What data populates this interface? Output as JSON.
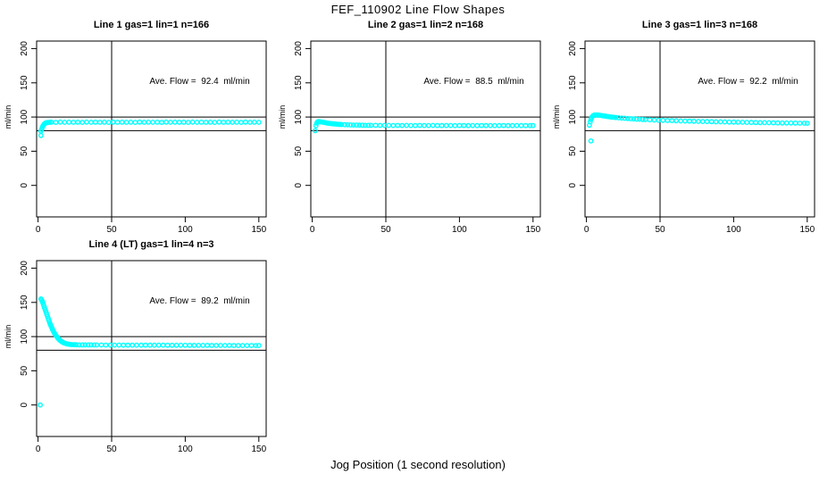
{
  "page": {
    "title": "FEF_110902  Line Flow Shapes",
    "xlabel": "Jog Position (1 second resolution)",
    "bg_color": "#ffffff",
    "axis_color": "#000000",
    "point_color": "#00ffff"
  },
  "chart_data": [
    {
      "type": "scatter",
      "title": "Line 1 gas=1 lin=1 n=166",
      "annotation": "Ave. Flow =  92.4  ml/min",
      "ave_flow_ml_min": 92.4,
      "n": 166,
      "ylabel": "ml/min",
      "xlim": [
        -1,
        155
      ],
      "ylim": [
        -46,
        211
      ],
      "xticks": [
        0,
        50,
        100,
        150
      ],
      "yticks": [
        0,
        50,
        100,
        150,
        200
      ],
      "ref_hlines": [
        100,
        80
      ],
      "ref_vlines": [
        50
      ],
      "grid": false,
      "points": [
        [
          2,
          73
        ],
        [
          2,
          79.5
        ],
        [
          2.4,
          82
        ],
        [
          2.8,
          84.5
        ],
        [
          3.2,
          86.5
        ],
        [
          3.6,
          88
        ],
        [
          4,
          89.3
        ],
        [
          4.5,
          90.4
        ],
        [
          5,
          91.1
        ],
        [
          5.5,
          91.6
        ],
        [
          6,
          91.9
        ],
        [
          7,
          92.2
        ],
        [
          8,
          92.3
        ],
        [
          9,
          92.4
        ],
        [
          12,
          92.2
        ],
        [
          15,
          92.5
        ],
        [
          18,
          92.3
        ],
        [
          21,
          92.4
        ],
        [
          24,
          92.3
        ],
        [
          27,
          92.4
        ],
        [
          30,
          92.2
        ],
        [
          33,
          92.5
        ],
        [
          36,
          92.3
        ],
        [
          39,
          92.4
        ],
        [
          42,
          92.3
        ],
        [
          45,
          92.4
        ],
        [
          48,
          92.2
        ],
        [
          51,
          92.5
        ],
        [
          54,
          92.3
        ],
        [
          57,
          92.4
        ],
        [
          60,
          92.3
        ],
        [
          63,
          92.4
        ],
        [
          66,
          92.2
        ],
        [
          69,
          92.5
        ],
        [
          72,
          92.3
        ],
        [
          75,
          92.4
        ],
        [
          78,
          92.3
        ],
        [
          81,
          92.4
        ],
        [
          84,
          92.2
        ],
        [
          87,
          92.5
        ],
        [
          90,
          92.3
        ],
        [
          93,
          92.4
        ],
        [
          96,
          92.3
        ],
        [
          99,
          92.4
        ],
        [
          102,
          92.2
        ],
        [
          105,
          92.5
        ],
        [
          108,
          92.3
        ],
        [
          111,
          92.4
        ],
        [
          114,
          92.3
        ],
        [
          117,
          92.4
        ],
        [
          120,
          92.2
        ],
        [
          123,
          92.5
        ],
        [
          126,
          92.3
        ],
        [
          129,
          92.4
        ],
        [
          132,
          92.3
        ],
        [
          135,
          92.4
        ],
        [
          138,
          92.2
        ],
        [
          141,
          92.5
        ],
        [
          144,
          92.3
        ],
        [
          147,
          92.4
        ],
        [
          150,
          92.3
        ]
      ]
    },
    {
      "type": "scatter",
      "title": "Line 2 gas=1 lin=2 n=168",
      "annotation": "Ave. Flow =  88.5  ml/min",
      "ave_flow_ml_min": 88.5,
      "n": 168,
      "ylabel": "ml/min",
      "xlim": [
        -1,
        155
      ],
      "ylim": [
        -46,
        211
      ],
      "xticks": [
        0,
        50,
        100,
        150
      ],
      "yticks": [
        0,
        50,
        100,
        150,
        200
      ],
      "ref_hlines": [
        100,
        80
      ],
      "ref_vlines": [
        50
      ],
      "grid": false,
      "points": [
        [
          2,
          80
        ],
        [
          2.5,
          87.5
        ],
        [
          3,
          91
        ],
        [
          3.5,
          92.7
        ],
        [
          4,
          93.2
        ],
        [
          4.5,
          93.3
        ],
        [
          5,
          93.2
        ],
        [
          6,
          92.8
        ],
        [
          7,
          92.4
        ],
        [
          8,
          92
        ],
        [
          9,
          91.6
        ],
        [
          10,
          91.2
        ],
        [
          11,
          90.9
        ],
        [
          12,
          90.6
        ],
        [
          13,
          90.3
        ],
        [
          14,
          90.1
        ],
        [
          15,
          89.9
        ],
        [
          16,
          89.7
        ],
        [
          17,
          89.5
        ],
        [
          18,
          89.3
        ],
        [
          19,
          89.2
        ],
        [
          20,
          89
        ],
        [
          22,
          88.8
        ],
        [
          24,
          88.6
        ],
        [
          26,
          88.4
        ],
        [
          28,
          88.3
        ],
        [
          30,
          88.2
        ],
        [
          32,
          88.1
        ],
        [
          34,
          88
        ],
        [
          36,
          87.9
        ],
        [
          38,
          87.9
        ],
        [
          40,
          87.8
        ],
        [
          43,
          87.8
        ],
        [
          46,
          87.7
        ],
        [
          49,
          87.7
        ],
        [
          52,
          87.7
        ],
        [
          55,
          87.6
        ],
        [
          58,
          87.7
        ],
        [
          61,
          87.6
        ],
        [
          64,
          87.7
        ],
        [
          67,
          87.6
        ],
        [
          70,
          87.6
        ],
        [
          73,
          87.7
        ],
        [
          76,
          87.6
        ],
        [
          79,
          87.6
        ],
        [
          82,
          87.7
        ],
        [
          85,
          87.6
        ],
        [
          88,
          87.5
        ],
        [
          91,
          87.6
        ],
        [
          94,
          87.6
        ],
        [
          97,
          87.5
        ],
        [
          100,
          87.6
        ],
        [
          103,
          87.6
        ],
        [
          106,
          87.5
        ],
        [
          109,
          87.6
        ],
        [
          112,
          87.5
        ],
        [
          115,
          87.6
        ],
        [
          118,
          87.5
        ],
        [
          121,
          87.6
        ],
        [
          124,
          87.5
        ],
        [
          127,
          87.5
        ],
        [
          130,
          87.6
        ],
        [
          133,
          87.5
        ],
        [
          136,
          87.5
        ],
        [
          139,
          87.6
        ],
        [
          142,
          87.5
        ],
        [
          145,
          87.5
        ],
        [
          148,
          87.5
        ],
        [
          150,
          87.5
        ]
      ]
    },
    {
      "type": "scatter",
      "title": "Line 3 gas=1 lin=3 n=168",
      "annotation": "Ave. Flow =  92.2  ml/min",
      "ave_flow_ml_min": 92.2,
      "n": 168,
      "ylabel": "ml/min",
      "xlim": [
        -1,
        155
      ],
      "ylim": [
        -46,
        211
      ],
      "xticks": [
        0,
        50,
        100,
        150
      ],
      "yticks": [
        0,
        50,
        100,
        150,
        200
      ],
      "ref_hlines": [
        100,
        80
      ],
      "ref_vlines": [
        50
      ],
      "grid": false,
      "points": [
        [
          3,
          65
        ],
        [
          2,
          88
        ],
        [
          2.5,
          93
        ],
        [
          3,
          96.5
        ],
        [
          3.5,
          99
        ],
        [
          4,
          100.8
        ],
        [
          4.5,
          101.8
        ],
        [
          5,
          102.4
        ],
        [
          5.5,
          102.8
        ],
        [
          6,
          103
        ],
        [
          7,
          103
        ],
        [
          8,
          102.8
        ],
        [
          9,
          102.5
        ],
        [
          10,
          102.2
        ],
        [
          11,
          101.8
        ],
        [
          12,
          101.5
        ],
        [
          13,
          101.1
        ],
        [
          14,
          100.8
        ],
        [
          15,
          100.5
        ],
        [
          16,
          100.2
        ],
        [
          17,
          99.9
        ],
        [
          18,
          99.7
        ],
        [
          19,
          99.4
        ],
        [
          20,
          99.2
        ],
        [
          22,
          98.8
        ],
        [
          24,
          98.4
        ],
        [
          26,
          98.1
        ],
        [
          28,
          97.8
        ],
        [
          30,
          97.5
        ],
        [
          32,
          97.2
        ],
        [
          34,
          96.9
        ],
        [
          36,
          96.7
        ],
        [
          38,
          96.5
        ],
        [
          40,
          96.2
        ],
        [
          43,
          95.9
        ],
        [
          46,
          95.6
        ],
        [
          49,
          95.3
        ],
        [
          52,
          95.1
        ],
        [
          55,
          94.9
        ],
        [
          58,
          94.7
        ],
        [
          61,
          94.5
        ],
        [
          64,
          94.3
        ],
        [
          67,
          94.1
        ],
        [
          70,
          94
        ],
        [
          73,
          93.8
        ],
        [
          76,
          93.6
        ],
        [
          79,
          93.5
        ],
        [
          82,
          93.3
        ],
        [
          85,
          93.2
        ],
        [
          88,
          93
        ],
        [
          91,
          92.9
        ],
        [
          94,
          92.8
        ],
        [
          97,
          92.6
        ],
        [
          100,
          92.5
        ],
        [
          103,
          92.4
        ],
        [
          106,
          92.3
        ],
        [
          109,
          92.1
        ],
        [
          112,
          92
        ],
        [
          115,
          91.9
        ],
        [
          118,
          91.8
        ],
        [
          121,
          91.7
        ],
        [
          124,
          91.6
        ],
        [
          127,
          91.5
        ],
        [
          130,
          91.4
        ],
        [
          133,
          91.3
        ],
        [
          136,
          91.3
        ],
        [
          139,
          91.2
        ],
        [
          142,
          91.1
        ],
        [
          145,
          91
        ],
        [
          148,
          91
        ],
        [
          150,
          90.9
        ]
      ]
    },
    {
      "type": "scatter",
      "title": "Line 4 (LT) gas=1 lin=4 n=3",
      "annotation": "Ave. Flow =  89.2  ml/min",
      "ave_flow_ml_min": 89.2,
      "n": 3,
      "ylabel": "ml/min",
      "xlim": [
        -1,
        155
      ],
      "ylim": [
        -46,
        211
      ],
      "xticks": [
        0,
        50,
        100,
        150
      ],
      "yticks": [
        0,
        50,
        100,
        150,
        200
      ],
      "ref_hlines": [
        100,
        80
      ],
      "ref_vlines": [
        50
      ],
      "grid": false,
      "points": [
        [
          1.5,
          0
        ],
        [
          2,
          155
        ],
        [
          2.4,
          153.5
        ],
        [
          2.8,
          151.5
        ],
        [
          3.2,
          149.5
        ],
        [
          3.6,
          147
        ],
        [
          4,
          144.5
        ],
        [
          4.4,
          142
        ],
        [
          4.8,
          139.5
        ],
        [
          5.2,
          137
        ],
        [
          5.6,
          134.5
        ],
        [
          6,
          132
        ],
        [
          6.4,
          129.5
        ],
        [
          6.8,
          127
        ],
        [
          7.2,
          124.5
        ],
        [
          7.6,
          122
        ],
        [
          8,
          119.5
        ],
        [
          8.4,
          117.5
        ],
        [
          8.8,
          115.5
        ],
        [
          9.2,
          113.5
        ],
        [
          9.6,
          111.5
        ],
        [
          10,
          109.5
        ],
        [
          10.5,
          107.5
        ],
        [
          11,
          105.5
        ],
        [
          11.5,
          103.5
        ],
        [
          12,
          102
        ],
        [
          12.5,
          100.5
        ],
        [
          13,
          99
        ],
        [
          13.5,
          97.7
        ],
        [
          14,
          96.5
        ],
        [
          14.5,
          95.4
        ],
        [
          15,
          94.4
        ],
        [
          15.5,
          93.5
        ],
        [
          16,
          92.7
        ],
        [
          16.5,
          92
        ],
        [
          17,
          91.4
        ],
        [
          17.5,
          90.9
        ],
        [
          18,
          90.4
        ],
        [
          19,
          89.7
        ],
        [
          20,
          89.2
        ],
        [
          21,
          88.8
        ],
        [
          22,
          88.5
        ],
        [
          23,
          88.3
        ],
        [
          24,
          88.2
        ],
        [
          25,
          88.1
        ],
        [
          26,
          88
        ],
        [
          28,
          87.9
        ],
        [
          30,
          87.9
        ],
        [
          32,
          87.8
        ],
        [
          34,
          87.8
        ],
        [
          36,
          87.8
        ],
        [
          38,
          87.7
        ],
        [
          40,
          87.7
        ],
        [
          43,
          87.7
        ],
        [
          46,
          87.6
        ],
        [
          49,
          87.6
        ],
        [
          52,
          87.6
        ],
        [
          55,
          87.6
        ],
        [
          58,
          87.5
        ],
        [
          61,
          87.5
        ],
        [
          64,
          87.5
        ],
        [
          67,
          87.5
        ],
        [
          70,
          87.5
        ],
        [
          73,
          87.4
        ],
        [
          76,
          87.4
        ],
        [
          79,
          87.4
        ],
        [
          82,
          87.4
        ],
        [
          85,
          87.4
        ],
        [
          88,
          87.3
        ],
        [
          91,
          87.3
        ],
        [
          94,
          87.3
        ],
        [
          97,
          87.3
        ],
        [
          100,
          87.3
        ],
        [
          103,
          87.2
        ],
        [
          106,
          87.2
        ],
        [
          109,
          87.2
        ],
        [
          112,
          87.2
        ],
        [
          115,
          87.2
        ],
        [
          118,
          87.1
        ],
        [
          121,
          87.1
        ],
        [
          124,
          87.1
        ],
        [
          127,
          87.1
        ],
        [
          130,
          87.1
        ],
        [
          133,
          87
        ],
        [
          136,
          87
        ],
        [
          139,
          87
        ],
        [
          142,
          87
        ],
        [
          145,
          87
        ],
        [
          148,
          87
        ],
        [
          150,
          87
        ]
      ]
    }
  ]
}
